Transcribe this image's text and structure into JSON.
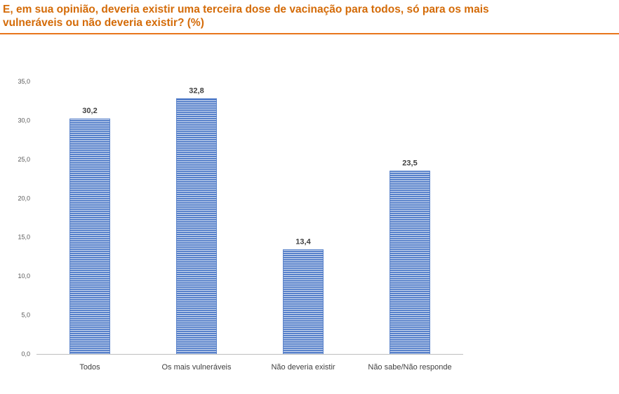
{
  "header": {
    "title_line1": "E, em sua opinião, deveria existir uma terceira dose de vacinação para todos, só para os mais",
    "title_line2": "vulneráveis ou não deveria existir? (%)"
  },
  "colors": {
    "title": "#d46b08",
    "rule": "#e8761c",
    "bar_fill": "#4472c4",
    "bar_stripe": "#ffffff",
    "axis": "#bfbfbf"
  },
  "chart_data": {
    "type": "bar",
    "title": "E, em sua opinião, deveria existir uma terceira dose de vacinação para todos, só para os mais vulneráveis ou não deveria existir? (%)",
    "categories": [
      "Todos",
      "Os mais vulneráveis",
      "Não deveria existir",
      "Não sabe/Não responde"
    ],
    "values": [
      30.2,
      32.8,
      13.4,
      23.5
    ],
    "data_labels": [
      "30,2",
      "32,8",
      "13,4",
      "23,5"
    ],
    "yticks": [
      0,
      5,
      10,
      15,
      20,
      25,
      30,
      35
    ],
    "ytick_labels": [
      "0,0",
      "5,0",
      "10,0",
      "15,0",
      "20,0",
      "25,0",
      "30,0",
      "35,0"
    ],
    "ylim": [
      0,
      35
    ],
    "grid": false,
    "legend": "none",
    "xlabel": "",
    "ylabel": ""
  }
}
